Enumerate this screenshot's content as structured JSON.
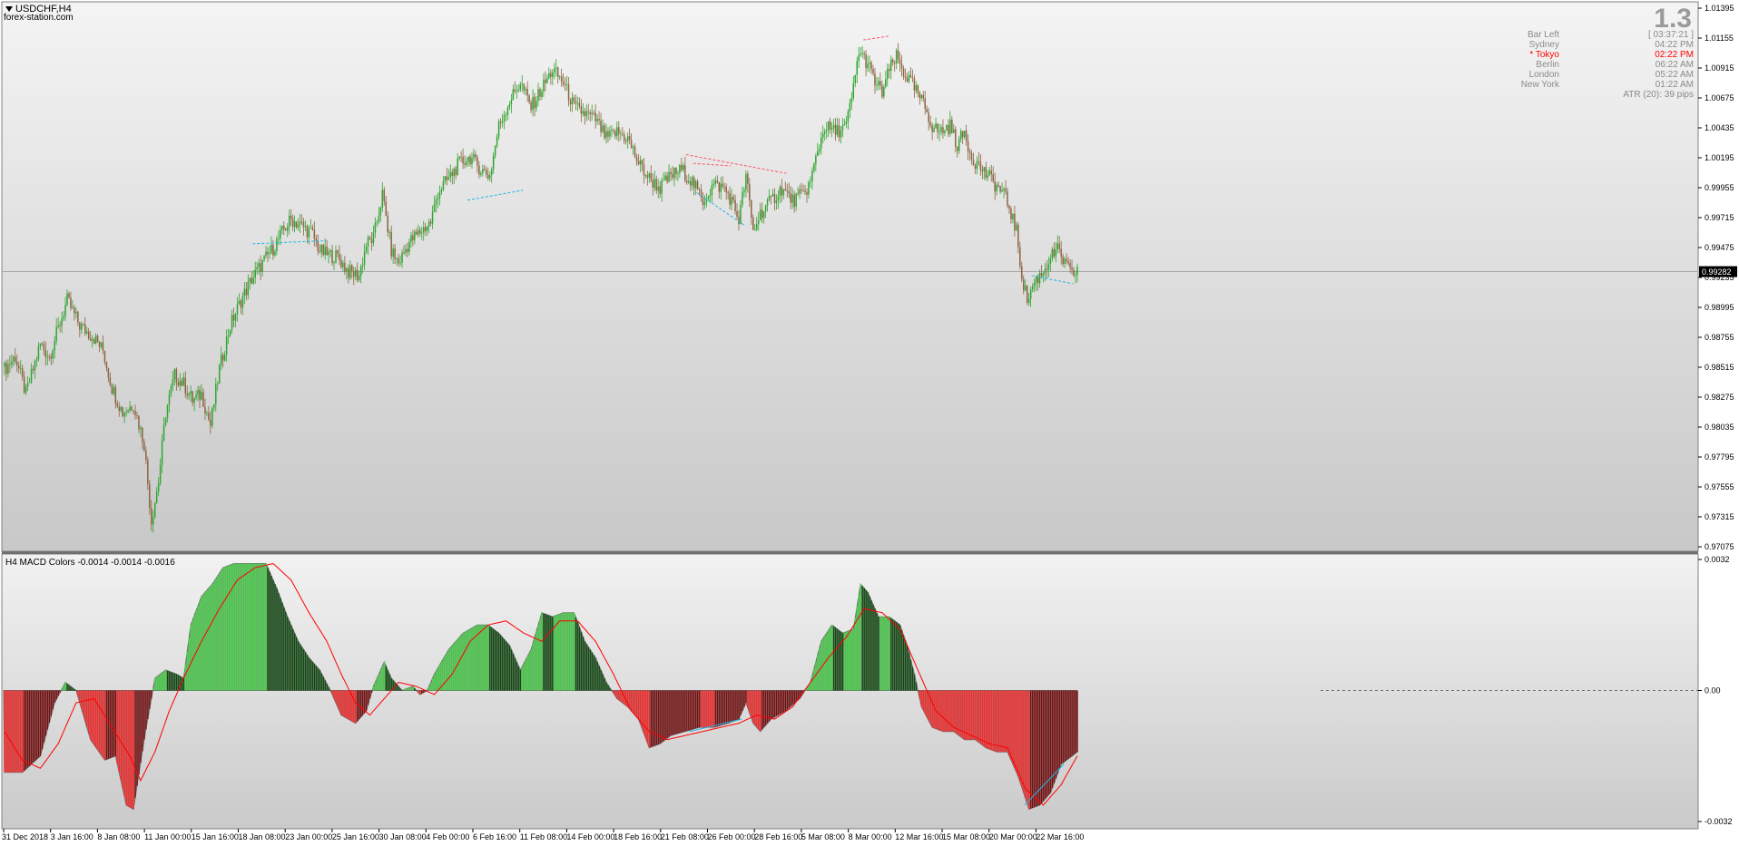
{
  "header": {
    "symbol": "USDCHF,H4",
    "source": "forex-station.com"
  },
  "info_panel": {
    "big_value": "1.3",
    "rows": [
      {
        "label": "Bar Left",
        "value": "[ 03:37:21 ]",
        "highlight": false
      },
      {
        "label": "Sydney",
        "value": "04:22 PM",
        "highlight": false
      },
      {
        "label": "* Tokyo",
        "value": "02:22 PM",
        "highlight": true
      },
      {
        "label": "Berlin",
        "value": "06:22 AM",
        "highlight": false
      },
      {
        "label": "London",
        "value": "05:22 AM",
        "highlight": false
      },
      {
        "label": "New York",
        "value": "01:22 AM",
        "highlight": false
      }
    ],
    "atr": "ATR (20): 39 pips"
  },
  "colors": {
    "bull_candle": "#2fa52f",
    "bear_candle": "#8c6440",
    "macd_up_strong": "#48d848",
    "macd_up_weak": "#0f4a0f",
    "macd_down_strong": "#ff2828",
    "macd_down_weak": "#7a0c0c",
    "signal_line": "#ff0000",
    "divergence_bear": "#ff5064",
    "divergence_bull": "#1eb4e6",
    "tokyo_highlight": "#ff0000"
  },
  "chart_data": [
    {
      "type": "candlestick",
      "name": "USDCHF,H4",
      "ylim": [
        0.97075,
        1.01395
      ],
      "yticks": [
        "1.01395",
        "1.01155",
        "1.00915",
        "1.00675",
        "1.00435",
        "1.00195",
        "0.99955",
        "0.99715",
        "0.99475",
        "0.99235",
        "0.98995",
        "0.98755",
        "0.98515",
        "0.98275",
        "0.98035",
        "0.97795",
        "0.97555",
        "0.97315",
        "0.97075"
      ],
      "current_price": "0.99282",
      "close_path": [
        [
          0,
          0.985
        ],
        [
          6,
          0.986
        ],
        [
          12,
          0.983
        ],
        [
          20,
          0.987
        ],
        [
          25,
          0.986
        ],
        [
          35,
          0.9905
        ],
        [
          42,
          0.9885
        ],
        [
          50,
          0.9875
        ],
        [
          55,
          0.9865
        ],
        [
          60,
          0.9835
        ],
        [
          66,
          0.9815
        ],
        [
          72,
          0.9822
        ],
        [
          78,
          0.979
        ],
        [
          82,
          0.9728
        ],
        [
          86,
          0.976
        ],
        [
          90,
          0.9815
        ],
        [
          95,
          0.9845
        ],
        [
          100,
          0.9838
        ],
        [
          105,
          0.9825
        ],
        [
          110,
          0.983
        ],
        [
          115,
          0.9805
        ],
        [
          120,
          0.985
        ],
        [
          126,
          0.9885
        ],
        [
          132,
          0.9905
        ],
        [
          138,
          0.9922
        ],
        [
          144,
          0.9935
        ],
        [
          150,
          0.9947
        ],
        [
          156,
          0.9962
        ],
        [
          160,
          0.997
        ],
        [
          166,
          0.9965
        ],
        [
          172,
          0.9958
        ],
        [
          176,
          0.9945
        ],
        [
          180,
          0.9942
        ],
        [
          186,
          0.994
        ],
        [
          192,
          0.9928
        ],
        [
          198,
          0.9925
        ],
        [
          202,
          0.995
        ],
        [
          206,
          0.9955
        ],
        [
          211,
          0.999
        ],
        [
          216,
          0.9945
        ],
        [
          220,
          0.9935
        ],
        [
          226,
          0.9952
        ],
        [
          232,
          0.996
        ],
        [
          238,
          0.9968
        ],
        [
          242,
          0.9992
        ],
        [
          248,
          1.0003
        ],
        [
          254,
          1.0015
        ],
        [
          260,
          1.002
        ],
        [
          266,
          1.001
        ],
        [
          271,
          1.0005
        ],
        [
          276,
          1.0045
        ],
        [
          282,
          1.0065
        ],
        [
          288,
          1.008
        ],
        [
          294,
          1.006
        ],
        [
          300,
          1.0075
        ],
        [
          306,
          1.009
        ],
        [
          312,
          1.008
        ],
        [
          318,
          1.006
        ],
        [
          324,
          1.0055
        ],
        [
          330,
          1.005
        ],
        [
          336,
          1.0035
        ],
        [
          342,
          1.004
        ],
        [
          348,
          1.0035
        ],
        [
          354,
          1.0015
        ],
        [
          360,
          1.0003
        ],
        [
          366,
          0.9995
        ],
        [
          372,
          1.0005
        ],
        [
          378,
          1.001
        ],
        [
          384,
          1.0
        ],
        [
          390,
          0.9985
        ],
        [
          396,
          0.9998
        ],
        [
          402,
          0.9995
        ],
        [
          406,
          0.9985
        ],
        [
          410,
          0.997
        ],
        [
          414,
          1.0005
        ],
        [
          418,
          0.996
        ],
        [
          422,
          0.9975
        ],
        [
          428,
          0.9985
        ],
        [
          434,
          0.9995
        ],
        [
          440,
          0.9985
        ],
        [
          446,
          0.999
        ],
        [
          450,
          1.0
        ],
        [
          454,
          1.0025
        ],
        [
          458,
          1.0045
        ],
        [
          464,
          1.004
        ],
        [
          470,
          1.0045
        ],
        [
          474,
          1.0075
        ],
        [
          477,
          1.0105
        ],
        [
          482,
          1.0095
        ],
        [
          486,
          1.008
        ],
        [
          490,
          1.0072
        ],
        [
          494,
          1.009
        ],
        [
          498,
          1.01
        ],
        [
          502,
          1.0088
        ],
        [
          506,
          1.008
        ],
        [
          510,
          1.007
        ],
        [
          514,
          1.006
        ],
        [
          518,
          1.0045
        ],
        [
          522,
          1.004
        ],
        [
          528,
          1.0045
        ],
        [
          532,
          1.003
        ],
        [
          536,
          1.004
        ],
        [
          540,
          1.002
        ],
        [
          546,
          1.001
        ],
        [
          552,
          1.0
        ],
        [
          558,
          0.999
        ],
        [
          561,
          0.998
        ],
        [
          565,
          0.996
        ],
        [
          568,
          0.9925
        ],
        [
          571,
          0.9905
        ],
        [
          575,
          0.992
        ],
        [
          580,
          0.9928
        ],
        [
          584,
          0.994
        ],
        [
          588,
          0.9945
        ],
        [
          592,
          0.9935
        ],
        [
          596,
          0.9925
        ],
        [
          599,
          0.993
        ]
      ],
      "annotations": [
        {
          "type": "bearish-divergence",
          "from": [
            480,
            1.0114
          ],
          "to": [
            494,
            1.0117
          ]
        },
        {
          "type": "bearish-divergence",
          "from": [
            381,
            1.0022
          ],
          "to": [
            437,
            1.0007
          ]
        },
        {
          "type": "bearish-divergence",
          "from": [
            385,
            1.0015
          ],
          "to": [
            406,
            1.0013
          ]
        },
        {
          "type": "bullish-divergence",
          "from": [
            139,
            0.99505
          ],
          "to": [
            180,
            0.9953
          ]
        },
        {
          "type": "bullish-divergence",
          "from": [
            259,
            0.99855
          ],
          "to": [
            290,
            0.99935
          ]
        },
        {
          "type": "bullish-divergence",
          "from": [
            387,
            0.99915
          ],
          "to": [
            414,
            0.9965
          ]
        },
        {
          "type": "bullish-divergence",
          "from": [
            574,
            0.9925
          ],
          "to": [
            597,
            0.99185
          ]
        }
      ]
    },
    {
      "type": "bar",
      "name": "H4 MACD Colors",
      "title": "H4 MACD Colors -0.0014 -0.0014 -0.0016",
      "ylim": [
        -0.0032,
        0.0032
      ],
      "yticks": [
        "0.0032",
        "0.00",
        "-0.0032"
      ],
      "histogram_path": [
        [
          0,
          -0.002
        ],
        [
          10,
          -0.002
        ],
        [
          20,
          -0.0016
        ],
        [
          28,
          -0.0003
        ],
        [
          34,
          0.0002
        ],
        [
          40,
          0.0
        ],
        [
          48,
          -0.0012
        ],
        [
          56,
          -0.0017
        ],
        [
          62,
          -0.0016
        ],
        [
          68,
          -0.0028
        ],
        [
          72,
          -0.0029
        ],
        [
          78,
          -0.0012
        ],
        [
          84,
          0.0003
        ],
        [
          90,
          0.0005
        ],
        [
          96,
          0.0004
        ],
        [
          100,
          0.0003
        ],
        [
          104,
          0.0016
        ],
        [
          110,
          0.0023
        ],
        [
          116,
          0.0026
        ],
        [
          122,
          0.003
        ],
        [
          128,
          0.0031
        ],
        [
          134,
          0.0031
        ],
        [
          140,
          0.0031
        ],
        [
          146,
          0.0031
        ],
        [
          152,
          0.0025
        ],
        [
          158,
          0.0018
        ],
        [
          164,
          0.0012
        ],
        [
          170,
          0.0008
        ],
        [
          176,
          0.0005
        ],
        [
          182,
          0.0
        ],
        [
          188,
          -0.0006
        ],
        [
          196,
          -0.0008
        ],
        [
          202,
          -0.0005
        ],
        [
          206,
          0.0001
        ],
        [
          212,
          0.0007
        ],
        [
          216,
          0.0003
        ],
        [
          222,
          0.0
        ],
        [
          228,
          0.0001
        ],
        [
          232,
          -0.0001
        ],
        [
          236,
          0.0
        ],
        [
          240,
          0.0004
        ],
        [
          248,
          0.001
        ],
        [
          256,
          0.0014
        ],
        [
          264,
          0.0016
        ],
        [
          270,
          0.0016
        ],
        [
          276,
          0.0014
        ],
        [
          282,
          0.0011
        ],
        [
          288,
          0.0005
        ],
        [
          294,
          0.001
        ],
        [
          300,
          0.0019
        ],
        [
          306,
          0.0018
        ],
        [
          312,
          0.0019
        ],
        [
          318,
          0.0019
        ],
        [
          324,
          0.0012
        ],
        [
          330,
          0.0008
        ],
        [
          336,
          0.0002
        ],
        [
          342,
          -0.0002
        ],
        [
          348,
          -0.0004
        ],
        [
          354,
          -0.0007
        ],
        [
          360,
          -0.0014
        ],
        [
          366,
          -0.0013
        ],
        [
          372,
          -0.0011
        ],
        [
          380,
          -0.001
        ],
        [
          388,
          -0.0009
        ],
        [
          396,
          -0.0009
        ],
        [
          404,
          -0.0008
        ],
        [
          410,
          -0.0007
        ],
        [
          414,
          -0.0003
        ],
        [
          418,
          -0.0008
        ],
        [
          422,
          -0.001
        ],
        [
          428,
          -0.0007
        ],
        [
          436,
          -0.0005
        ],
        [
          444,
          -0.0002
        ],
        [
          450,
          0.0002
        ],
        [
          456,
          0.0012
        ],
        [
          462,
          0.0016
        ],
        [
          468,
          0.0014
        ],
        [
          474,
          0.0015
        ],
        [
          478,
          0.0026
        ],
        [
          482,
          0.0024
        ],
        [
          488,
          0.0018
        ],
        [
          494,
          0.0018
        ],
        [
          500,
          0.0016
        ],
        [
          504,
          0.0011
        ],
        [
          508,
          0.0004
        ],
        [
          512,
          -0.0004
        ],
        [
          518,
          -0.0009
        ],
        [
          524,
          -0.001
        ],
        [
          530,
          -0.001
        ],
        [
          536,
          -0.0012
        ],
        [
          542,
          -0.0012
        ],
        [
          548,
          -0.0014
        ],
        [
          554,
          -0.0015
        ],
        [
          560,
          -0.0015
        ],
        [
          566,
          -0.0021
        ],
        [
          572,
          -0.0029
        ],
        [
          578,
          -0.0028
        ],
        [
          584,
          -0.0025
        ],
        [
          590,
          -0.0018
        ],
        [
          596,
          -0.0016
        ],
        [
          599,
          -0.0015
        ]
      ],
      "signal_path": [
        [
          0,
          -0.001
        ],
        [
          10,
          -0.0017
        ],
        [
          20,
          -0.0019
        ],
        [
          30,
          -0.0013
        ],
        [
          40,
          -0.0003
        ],
        [
          50,
          -0.0002
        ],
        [
          60,
          -0.0009
        ],
        [
          70,
          -0.0016
        ],
        [
          76,
          -0.0022
        ],
        [
          84,
          -0.0015
        ],
        [
          92,
          -0.0005
        ],
        [
          100,
          0.0003
        ],
        [
          110,
          0.0012
        ],
        [
          120,
          0.002
        ],
        [
          130,
          0.0027
        ],
        [
          140,
          0.003
        ],
        [
          150,
          0.0031
        ],
        [
          160,
          0.0027
        ],
        [
          170,
          0.0019
        ],
        [
          180,
          0.0012
        ],
        [
          188,
          0.0004
        ],
        [
          196,
          -0.0003
        ],
        [
          204,
          -0.0006
        ],
        [
          212,
          -0.0002
        ],
        [
          220,
          0.0002
        ],
        [
          230,
          0.0001
        ],
        [
          240,
          -0.0001
        ],
        [
          250,
          0.0004
        ],
        [
          260,
          0.0012
        ],
        [
          270,
          0.0016
        ],
        [
          280,
          0.0017
        ],
        [
          290,
          0.0014
        ],
        [
          300,
          0.0012
        ],
        [
          310,
          0.0017
        ],
        [
          320,
          0.0017
        ],
        [
          330,
          0.0012
        ],
        [
          340,
          0.0004
        ],
        [
          350,
          -0.0005
        ],
        [
          360,
          -0.001
        ],
        [
          370,
          -0.0012
        ],
        [
          380,
          -0.0011
        ],
        [
          390,
          -0.001
        ],
        [
          400,
          -0.0009
        ],
        [
          410,
          -0.0008
        ],
        [
          420,
          -0.0006
        ],
        [
          430,
          -0.0007
        ],
        [
          440,
          -0.0004
        ],
        [
          450,
          0.0002
        ],
        [
          460,
          0.0008
        ],
        [
          470,
          0.0013
        ],
        [
          480,
          0.002
        ],
        [
          490,
          0.0019
        ],
        [
          500,
          0.0015
        ],
        [
          510,
          0.0005
        ],
        [
          520,
          -0.0005
        ],
        [
          530,
          -0.0009
        ],
        [
          540,
          -0.0011
        ],
        [
          550,
          -0.0013
        ],
        [
          560,
          -0.0014
        ],
        [
          570,
          -0.0024
        ],
        [
          580,
          -0.0028
        ],
        [
          590,
          -0.0023
        ],
        [
          599,
          -0.0016
        ]
      ]
    }
  ],
  "x_axis": {
    "labels": [
      "31 Dec 2018",
      "3 Jan 16:00",
      "8 Jan 08:00",
      "11 Jan 00:00",
      "15 Jan 16:00",
      "18 Jan 08:00",
      "23 Jan 00:00",
      "25 Jan 16:00",
      "30 Jan 08:00",
      "4 Feb 00:00",
      "6 Feb 16:00",
      "11 Feb 08:00",
      "14 Feb 00:00",
      "18 Feb 16:00",
      "21 Feb 08:00",
      "26 Feb 00:00",
      "28 Feb 16:00",
      "5 Mar 08:00",
      "8 Mar 00:00",
      "12 Mar 16:00",
      "15 Mar 08:00",
      "20 Mar 00:00",
      "22 Mar 16:00"
    ]
  }
}
